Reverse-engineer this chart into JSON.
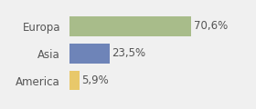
{
  "categories": [
    "America",
    "Asia",
    "Europa"
  ],
  "values": [
    5.9,
    23.5,
    70.6
  ],
  "labels": [
    "5,9%",
    "23,5%",
    "70,6%"
  ],
  "colors": [
    "#e8c86a",
    "#6e84b8",
    "#a8bc8a"
  ],
  "background_color": "#f0f0f0",
  "xlim": [
    0,
    105
  ],
  "label_fontsize": 8.5,
  "tick_fontsize": 8.5,
  "bar_height": 0.72
}
